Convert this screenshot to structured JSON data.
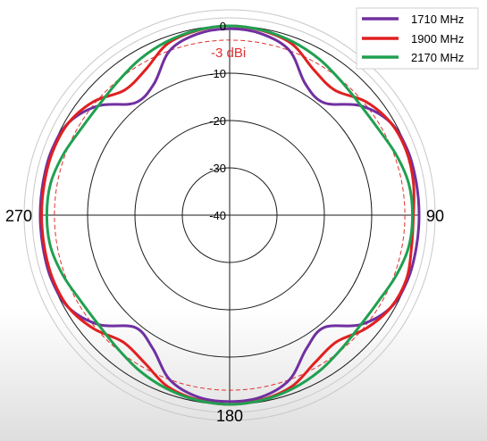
{
  "chart_data": {
    "type": "polar",
    "unit_note": "radiation pattern, values in dB relative to max",
    "radial_ticks": [
      "0",
      "-10",
      "-20",
      "-30",
      "-40"
    ],
    "radial_tick_values": [
      0,
      -10,
      -20,
      -30,
      -40
    ],
    "r_min": -40,
    "r_max": 0,
    "angle_labels": [
      {
        "text": "90",
        "angle": 90
      },
      {
        "text": "180",
        "angle": 180
      },
      {
        "text": "270",
        "angle": 270
      }
    ],
    "reference_circle": {
      "label": "-3 dBi",
      "value": -3,
      "color": "#e03030"
    },
    "grid": true,
    "legend_position": "top-right",
    "series": [
      {
        "name": "1710 MHz",
        "color": "#7030a0",
        "angles": [
          0,
          10,
          20,
          30,
          40,
          50,
          60,
          70,
          80,
          90,
          100,
          110,
          120,
          130,
          140,
          150,
          160,
          170,
          180,
          190,
          200,
          210,
          220,
          230,
          240,
          250,
          260,
          270,
          280,
          290,
          300,
          310,
          320,
          330,
          340,
          350
        ],
        "values": [
          -0.6,
          -1.1,
          -3.0,
          -8.0,
          -9.0,
          -4.0,
          -0.8,
          0,
          0,
          0,
          0,
          0,
          -0.8,
          -4.0,
          -9.0,
          -7.5,
          -3.0,
          -1.0,
          -0.6,
          -1.0,
          -3.0,
          -7.5,
          -9.0,
          -4.0,
          -0.8,
          0,
          0,
          0,
          0,
          0,
          -0.8,
          -4.0,
          -9.0,
          -8.0,
          -3.0,
          -1.1
        ]
      },
      {
        "name": "1900 MHz",
        "color": "#e02020",
        "angles": [
          0,
          10,
          20,
          30,
          40,
          50,
          60,
          70,
          80,
          90,
          100,
          110,
          120,
          130,
          140,
          150,
          160,
          170,
          180,
          190,
          200,
          210,
          220,
          230,
          240,
          250,
          260,
          270,
          280,
          290,
          300,
          310,
          320,
          330,
          340,
          350
        ],
        "values": [
          0,
          -0.4,
          -1.5,
          -4.5,
          -5.5,
          -2.6,
          -0.8,
          -0.3,
          -0.6,
          -1.2,
          -1.0,
          -0.3,
          -0.8,
          -2.6,
          -5.0,
          -4.0,
          -1.5,
          -0.4,
          0,
          -0.4,
          -1.5,
          -4.0,
          -5.0,
          -2.6,
          -0.8,
          -0.3,
          -0.3,
          -0.3,
          -0.3,
          -0.3,
          -0.8,
          -2.6,
          -5.5,
          -4.5,
          -1.5,
          -0.4
        ]
      },
      {
        "name": "2170 MHz",
        "color": "#20a050",
        "angles": [
          0,
          10,
          20,
          30,
          40,
          50,
          60,
          70,
          80,
          90,
          100,
          110,
          120,
          130,
          140,
          150,
          160,
          170,
          180,
          190,
          200,
          210,
          220,
          230,
          240,
          250,
          260,
          270,
          280,
          290,
          300,
          310,
          320,
          330,
          340,
          350
        ],
        "values": [
          0,
          -0.3,
          -1.0,
          -2.0,
          -3.2,
          -3.9,
          -3.7,
          -2.6,
          -1.6,
          -1.4,
          -1.6,
          -2.6,
          -3.7,
          -3.9,
          -3.2,
          -2.0,
          -1.0,
          -0.3,
          0,
          -0.3,
          -1.0,
          -2.0,
          -3.2,
          -3.9,
          -3.7,
          -2.6,
          -1.6,
          -1.4,
          -1.6,
          -2.6,
          -3.7,
          -3.9,
          -3.2,
          -2.0,
          -1.0,
          -0.3
        ]
      }
    ]
  }
}
